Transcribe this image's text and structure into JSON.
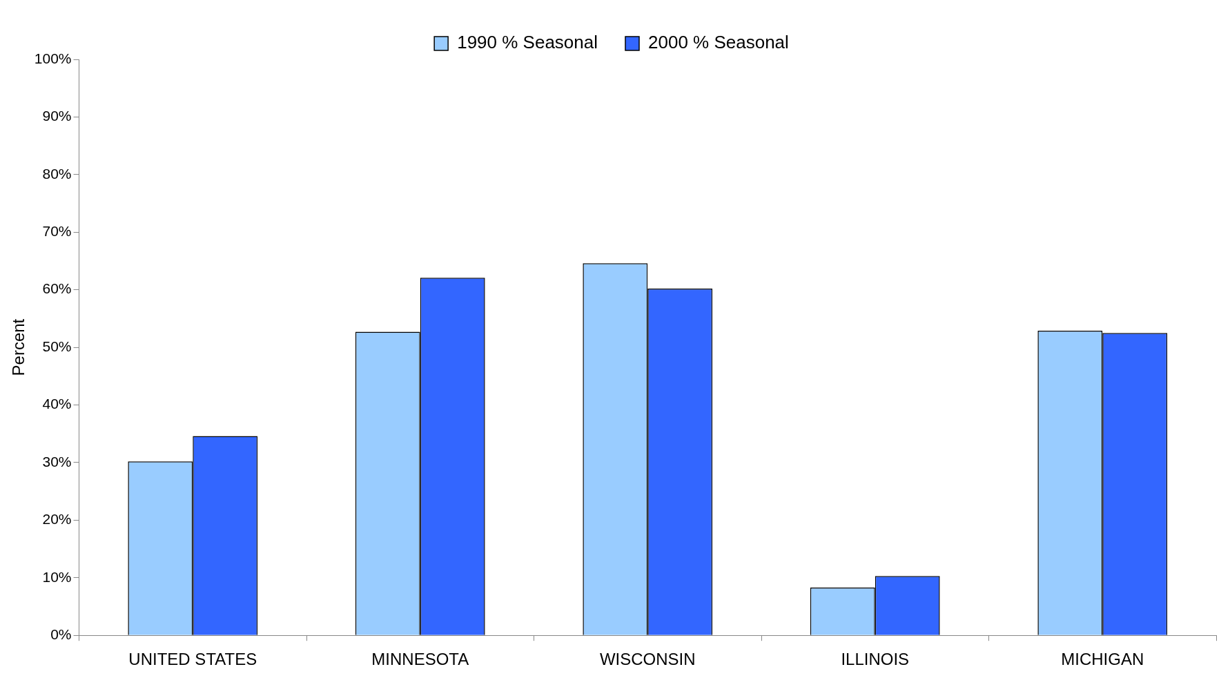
{
  "chart_data": {
    "type": "bar",
    "ylabel": "Percent",
    "categories": [
      "UNITED STATES",
      "MINNESOTA",
      "WISCONSIN",
      "ILLINOIS",
      "MICHIGAN"
    ],
    "series": [
      {
        "name": "1990 % Seasonal",
        "color": "#99ccff",
        "values": [
          30.2,
          52.7,
          64.6,
          8.3,
          52.9
        ]
      },
      {
        "name": "2000 % Seasonal",
        "color": "#3366ff",
        "values": [
          34.6,
          62.1,
          60.2,
          10.3,
          52.5
        ]
      }
    ],
    "ylim": [
      0,
      100
    ],
    "yticks": [
      {
        "value": 0,
        "label": "0%"
      },
      {
        "value": 10,
        "label": "10%"
      },
      {
        "value": 20,
        "label": "20%"
      },
      {
        "value": 30,
        "label": "30%"
      },
      {
        "value": 40,
        "label": "40%"
      },
      {
        "value": 50,
        "label": "50%"
      },
      {
        "value": 60,
        "label": "60%"
      },
      {
        "value": 70,
        "label": "70%"
      },
      {
        "value": 80,
        "label": "80%"
      },
      {
        "value": 90,
        "label": "90%"
      },
      {
        "value": 100,
        "label": "100%"
      }
    ],
    "grid": false,
    "legend": "top"
  }
}
